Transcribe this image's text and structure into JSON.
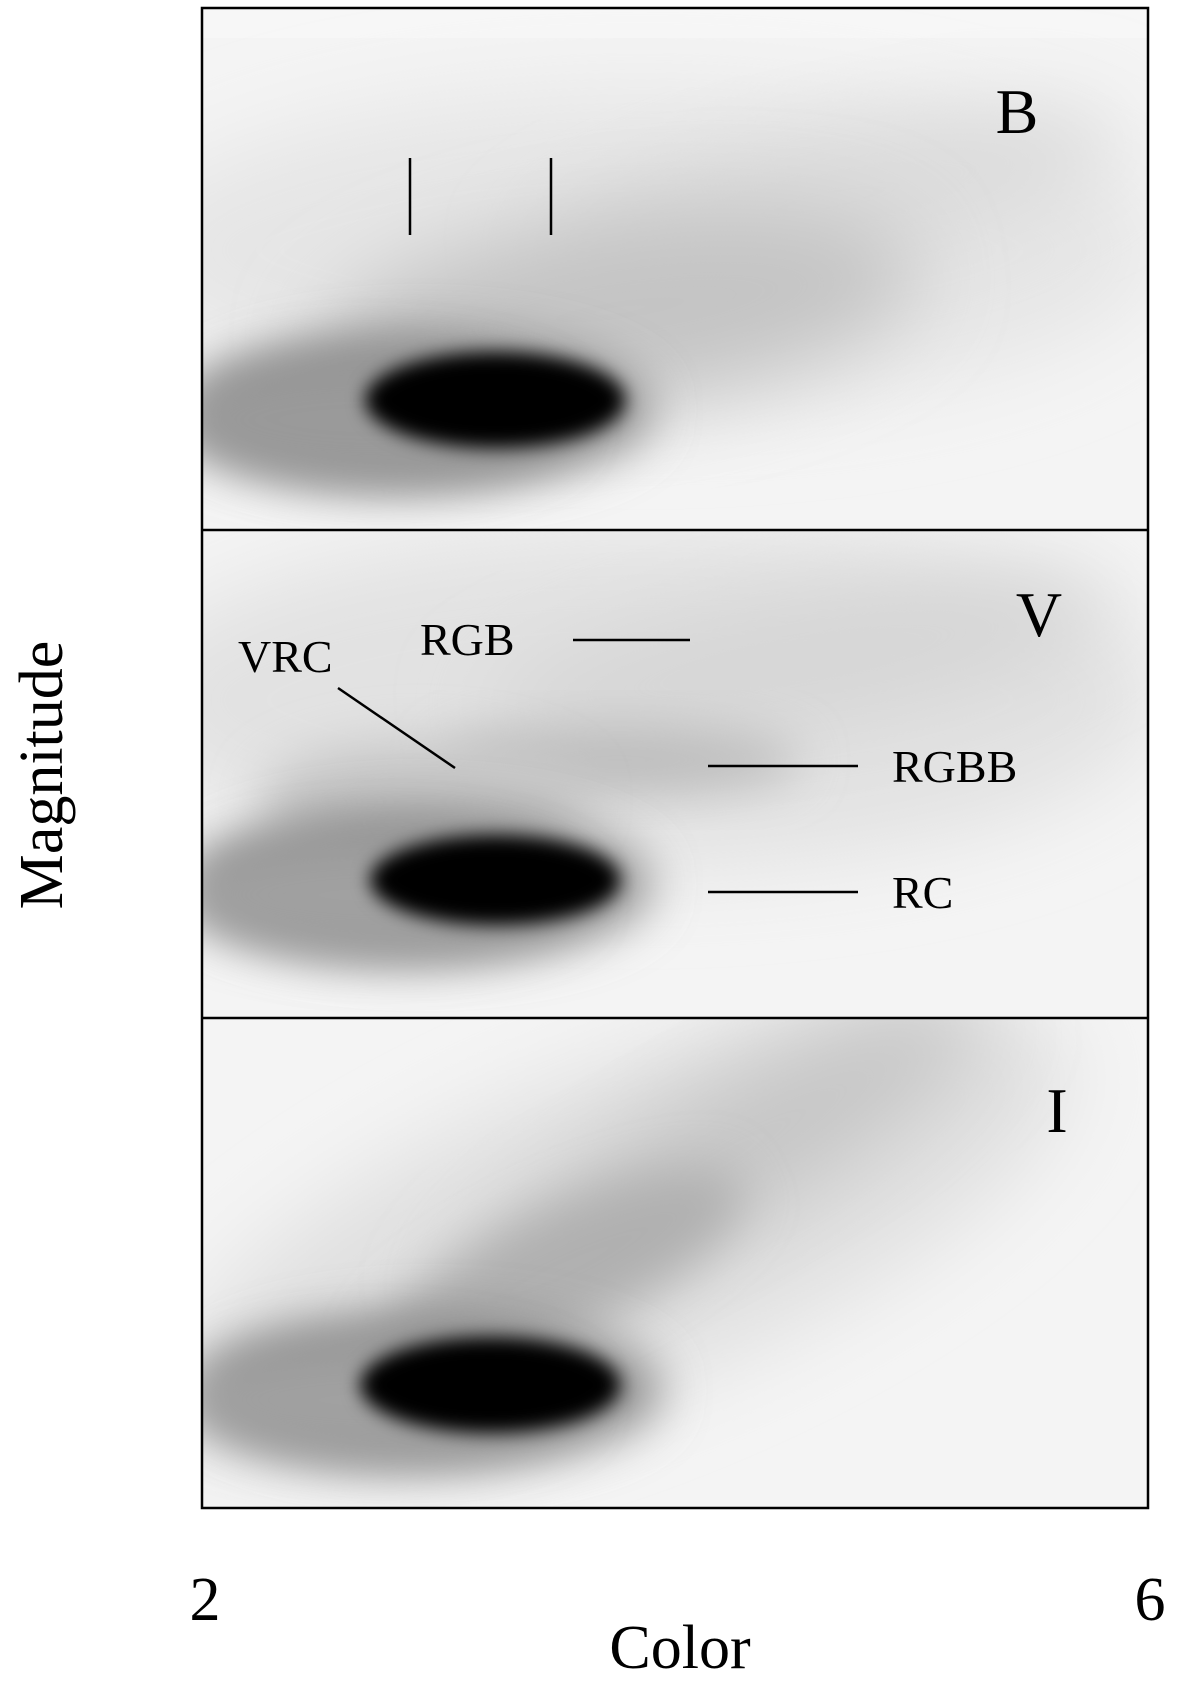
{
  "chart_data": {
    "type": "heatmap",
    "description_axes": {
      "xlabel": "Color",
      "ylabel": "Magnitude",
      "xlim": [
        2,
        6
      ],
      "x_ticks": [
        "2",
        "6"
      ]
    },
    "panels": [
      {
        "band": "B",
        "annotations": [],
        "markers": [
          "tick-1",
          "tick-2"
        ]
      },
      {
        "band": "V",
        "annotations": [
          "VRC",
          "RGB",
          "RGBB",
          "RC"
        ]
      },
      {
        "band": "I",
        "annotations": []
      }
    ]
  }
}
